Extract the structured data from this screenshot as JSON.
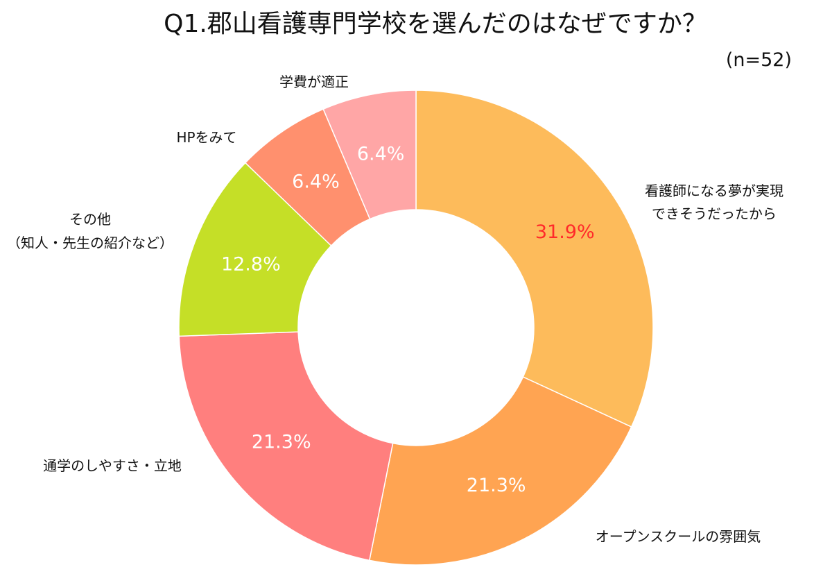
{
  "chart_data": {
    "type": "pie",
    "style": "donut",
    "title": "Q1.郡山看護専門学校を選んだのはなぜですか？",
    "sample_size": "(n=52)",
    "legend": "none",
    "slices": [
      {
        "label_lines": [
          "看護師になる夢が実現",
          "できそうだったから"
        ],
        "value": 31.9,
        "value_label": "31.9%",
        "color": "#FDBB5B",
        "value_label_color": "#FF2A2A"
      },
      {
        "label_lines": [
          "オープンスクールの雰囲気"
        ],
        "value": 21.3,
        "value_label": "21.3%",
        "color": "#FFA452",
        "value_label_color": "#FFFFFF"
      },
      {
        "label_lines": [
          "通学のしやすさ・立地"
        ],
        "value": 21.3,
        "value_label": "21.3%",
        "color": "#FF7F7E",
        "value_label_color": "#FFFFFF"
      },
      {
        "label_lines": [
          "その他",
          "（知人・先生の紹介など）"
        ],
        "value": 12.8,
        "value_label": "12.8%",
        "color": "#C5DF27",
        "value_label_color": "#FFFFFF"
      },
      {
        "label_lines": [
          "HPをみて"
        ],
        "value": 6.4,
        "value_label": "6.4%",
        "color": "#FF906E",
        "value_label_color": "#FFFFFF"
      },
      {
        "label_lines": [
          "学費が適正"
        ],
        "value": 6.4,
        "value_label": "6.4%",
        "color": "#FFA6A6",
        "value_label_color": "#FFFFFF"
      }
    ]
  }
}
